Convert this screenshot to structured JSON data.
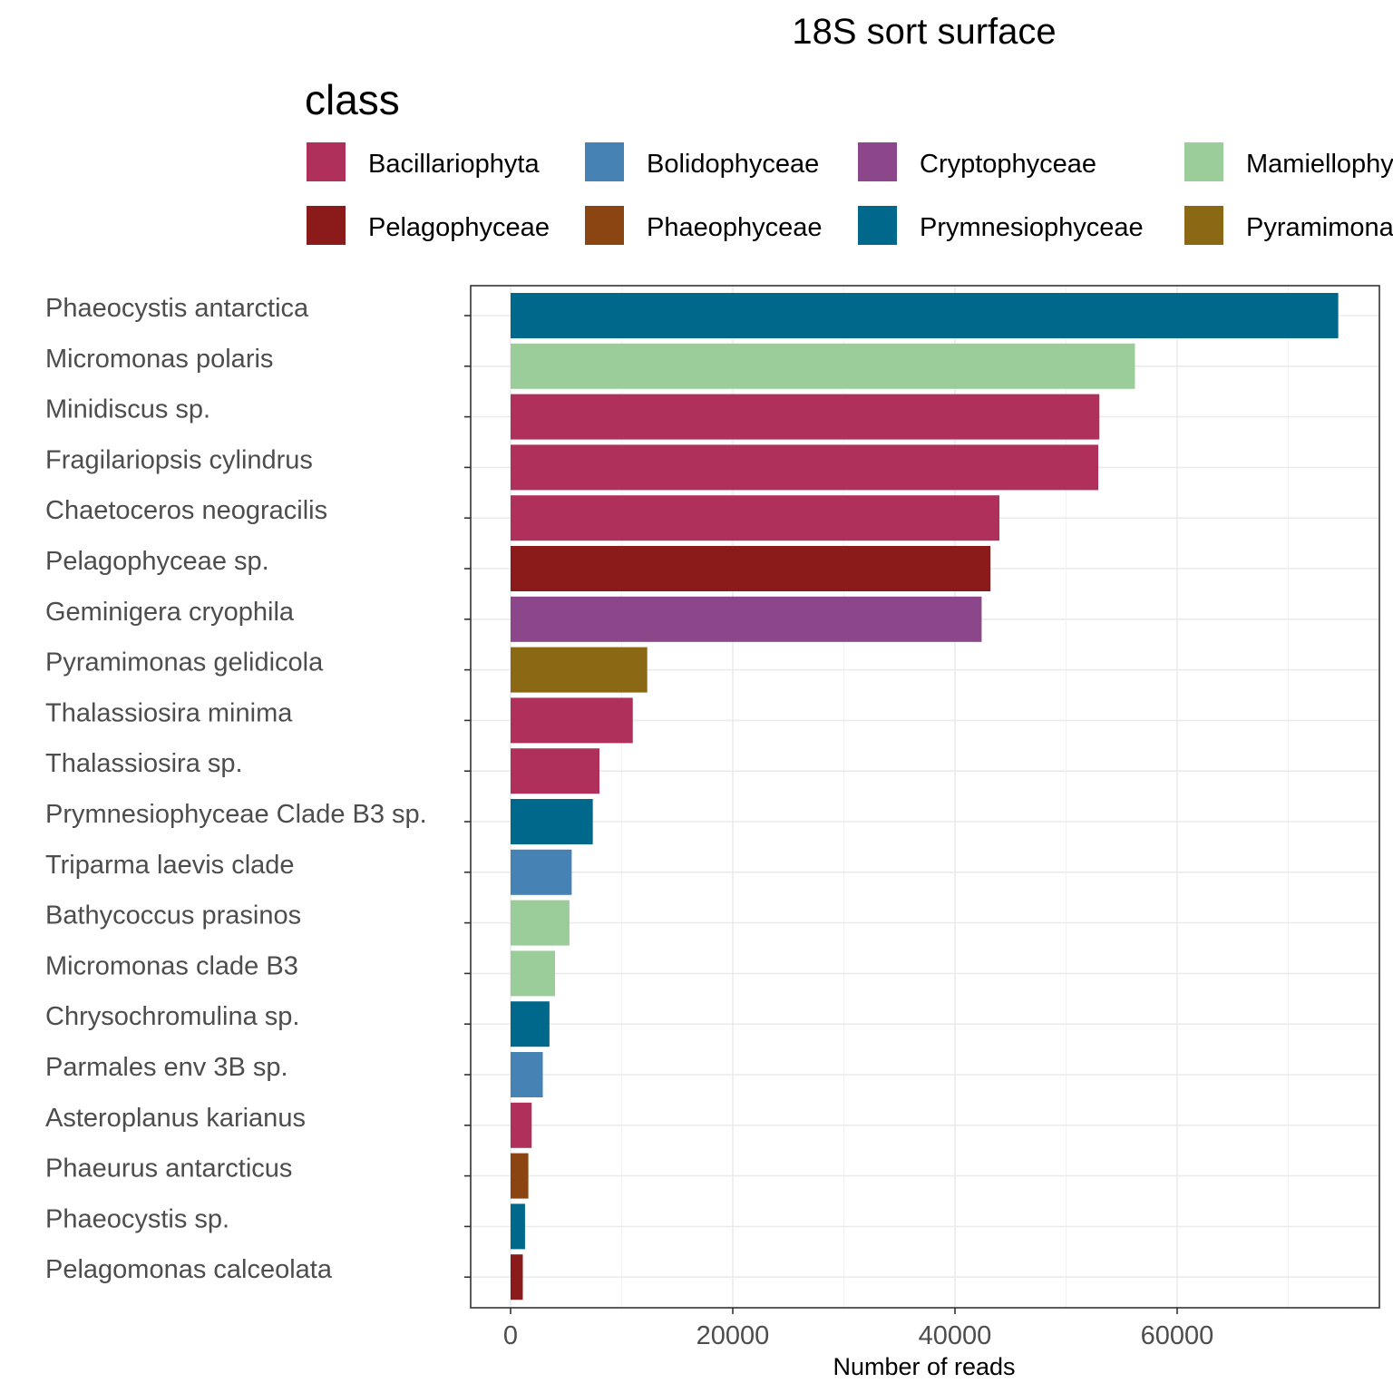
{
  "chart_data": {
    "type": "bar",
    "orientation": "horizontal",
    "title": "18S sort surface",
    "xlabel": "Number of reads",
    "ylabel": "",
    "xlim": [
      -3600,
      78000
    ],
    "xticks": [
      0,
      20000,
      40000,
      60000
    ],
    "xtick_labels": [
      "0",
      "20000",
      "40000",
      "60000"
    ],
    "grid": true,
    "legend": {
      "title": "class",
      "position": "top",
      "entries": [
        {
          "name": "Bacillariophyta",
          "color": "#B0305C"
        },
        {
          "name": "Bolidophyceae",
          "color": "#4682B4"
        },
        {
          "name": "Cryptophyceae",
          "color": "#8B4789"
        },
        {
          "name": "Mamiellophyceae",
          "color": "#9ACD9A"
        },
        {
          "name": "Pelagophyceae",
          "color": "#8B1A1A"
        },
        {
          "name": "Phaeophyceae",
          "color": "#8B4513"
        },
        {
          "name": "Prymnesiophyceae",
          "color": "#00688B"
        },
        {
          "name": "Pyramimonadophyceae",
          "color": "#8B6914"
        }
      ]
    },
    "categories": [
      "Phaeocystis antarctica",
      "Micromonas polaris",
      "Minidiscus sp.",
      "Fragilariopsis cylindrus",
      "Chaetoceros neogracilis",
      "Pelagophyceae sp.",
      "Geminigera cryophila",
      "Pyramimonas gelidicola",
      "Thalassiosira minima",
      "Thalassiosira sp.",
      "Prymnesiophyceae Clade B3 sp.",
      "Triparma laevis clade",
      "Bathycoccus prasinos",
      "Micromonas clade B3",
      "Chrysochromulina sp.",
      "Parmales env 3B sp.",
      "Asteroplanus karianus",
      "Phaeurus antarcticus",
      "Phaeocystis sp.",
      "Pelagomonas calceolata"
    ],
    "values": [
      74500,
      56200,
      53000,
      52900,
      44000,
      43200,
      42400,
      12300,
      11000,
      8000,
      7400,
      5500,
      5300,
      4000,
      3500,
      2900,
      1900,
      1600,
      1300,
      1100
    ],
    "classes": [
      "Prymnesiophyceae",
      "Mamiellophyceae",
      "Bacillariophyta",
      "Bacillariophyta",
      "Bacillariophyta",
      "Pelagophyceae",
      "Cryptophyceae",
      "Pyramimonadophyceae",
      "Bacillariophyta",
      "Bacillariophyta",
      "Prymnesiophyceae",
      "Bolidophyceae",
      "Mamiellophyceae",
      "Mamiellophyceae",
      "Prymnesiophyceae",
      "Bolidophyceae",
      "Bacillariophyta",
      "Phaeophyceae",
      "Prymnesiophyceae",
      "Pelagophyceae"
    ]
  }
}
